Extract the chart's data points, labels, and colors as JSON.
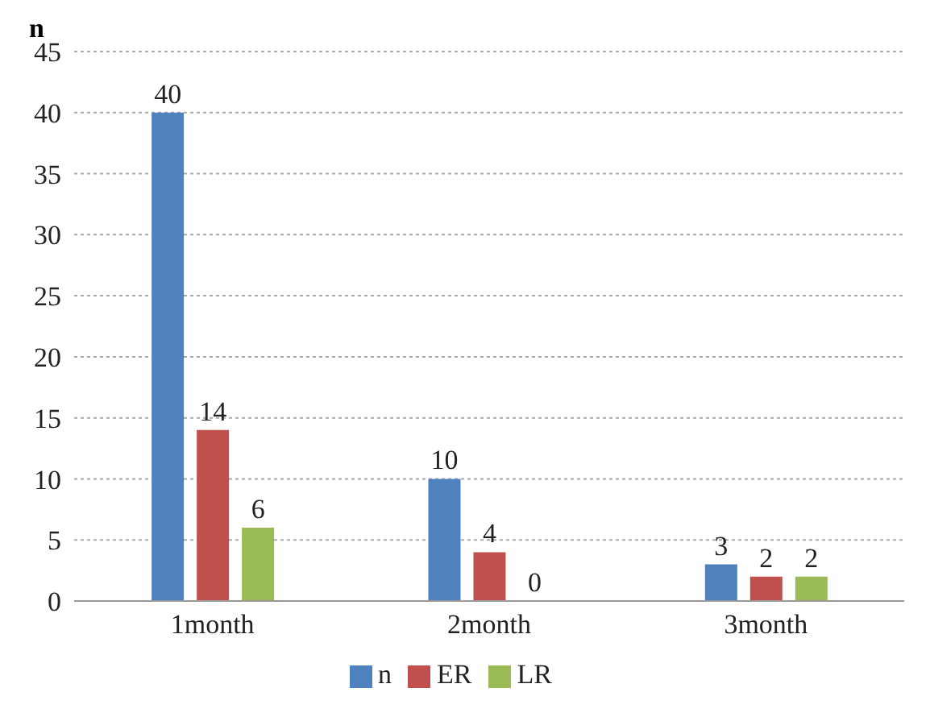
{
  "chart_data": {
    "type": "bar",
    "ylabel": "n",
    "categories": [
      "1month",
      "2month",
      "3month"
    ],
    "series": [
      {
        "name": "n",
        "color": "#4f81bd",
        "values": [
          40,
          10,
          3
        ]
      },
      {
        "name": "ER",
        "color": "#c0504d",
        "values": [
          14,
          4,
          2
        ]
      },
      {
        "name": "LR",
        "color": "#9bbb59",
        "values": [
          6,
          0,
          2
        ]
      }
    ],
    "ylim": [
      0,
      45
    ],
    "yticks": [
      0,
      5,
      10,
      15,
      20,
      25,
      30,
      35,
      40,
      45
    ],
    "grid": "y",
    "legend": "bottom",
    "data_labels": true
  }
}
